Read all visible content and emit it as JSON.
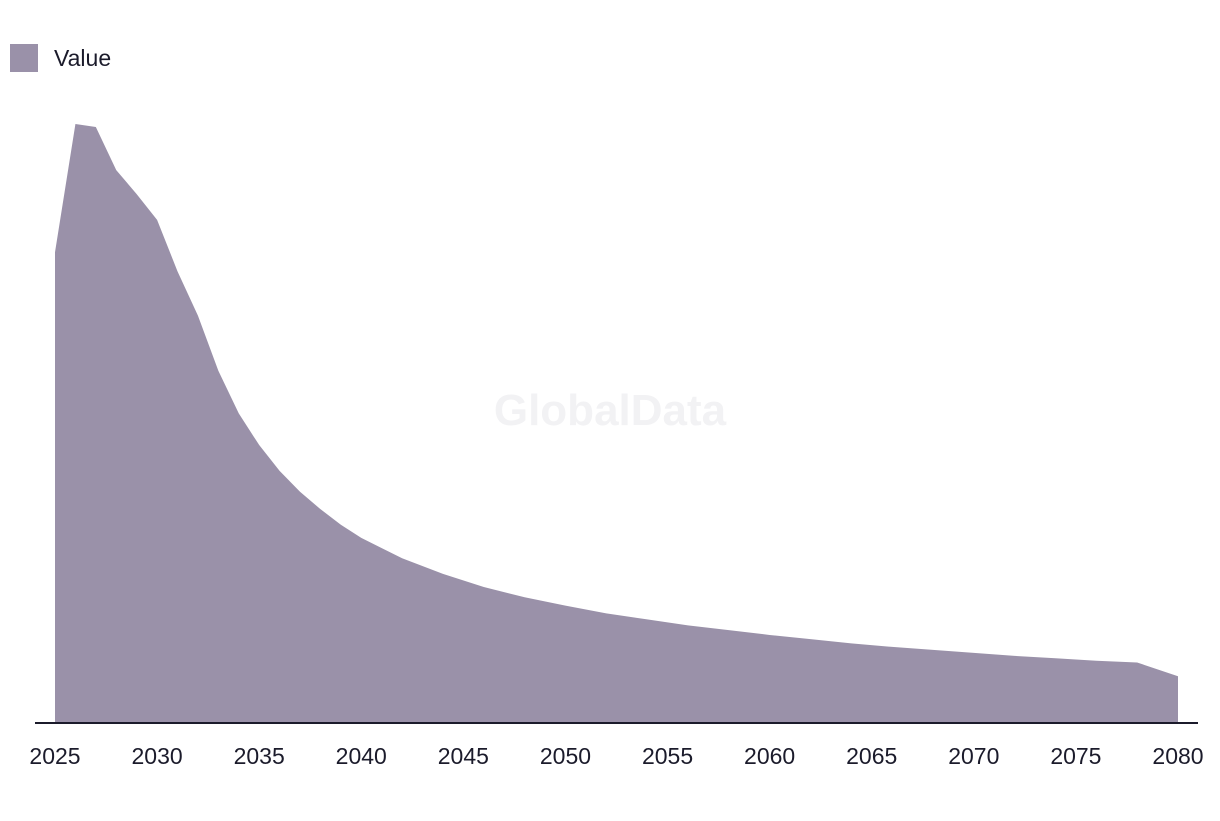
{
  "legend": {
    "label": "Value",
    "color": "#9a91a9"
  },
  "watermark": "GlobalData",
  "axis_color": "#1b1b2b",
  "chart_data": {
    "type": "area",
    "legend_position": "top-left",
    "grid": false,
    "title": "",
    "xlabel": "",
    "ylabel": "",
    "xlim": [
      2025,
      2080
    ],
    "ylim": [
      0,
      100
    ],
    "x_ticks": [
      2025,
      2030,
      2035,
      2040,
      2045,
      2050,
      2055,
      2060,
      2065,
      2070,
      2075,
      2080
    ],
    "series": [
      {
        "name": "Value",
        "color": "#9a91a9",
        "x": [
          2025,
          2026,
          2027,
          2028,
          2029,
          2030,
          2031,
          2032,
          2033,
          2034,
          2035,
          2036,
          2037,
          2038,
          2039,
          2040,
          2042,
          2044,
          2046,
          2048,
          2050,
          2052,
          2054,
          2056,
          2058,
          2060,
          2062,
          2064,
          2066,
          2068,
          2070,
          2072,
          2074,
          2076,
          2078,
          2080
        ],
        "values": [
          78.6,
          100,
          99.5,
          92.3,
          88.3,
          84.0,
          75.4,
          68.0,
          58.8,
          51.7,
          46.4,
          42.1,
          38.6,
          35.7,
          33.1,
          30.9,
          27.5,
          24.9,
          22.7,
          21.0,
          19.6,
          18.3,
          17.3,
          16.3,
          15.5,
          14.7,
          14.0,
          13.3,
          12.7,
          12.2,
          11.7,
          11.2,
          10.8,
          10.4,
          10.1,
          7.8
        ]
      }
    ]
  }
}
